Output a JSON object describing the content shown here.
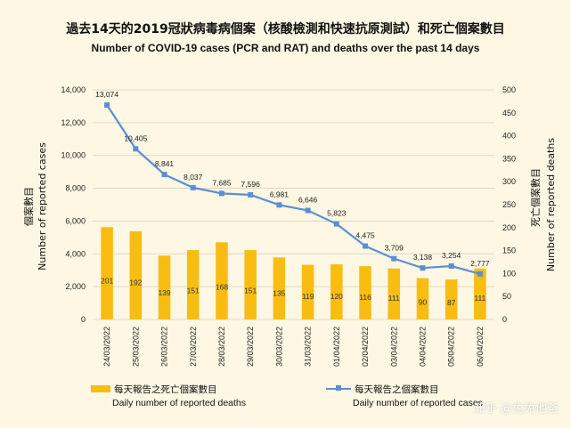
{
  "titles": {
    "zh": "過去14天的2019冠狀病毒病個案（核酸檢測和快速抗原測試）和死亡個案數目",
    "en": "Number of COVID-19 cases (PCR and RAT) and deaths over the past 14 days"
  },
  "axes": {
    "left_title_zh": "個案數目",
    "left_title_en": "Number of reported cases",
    "right_title_zh": "死亡個案數目",
    "right_title_en": "Number of reported deaths"
  },
  "legend": {
    "bar_zh": "每天報告之死亡個案數目",
    "bar_en": "Daily number of reported deaths",
    "line_zh": "每天報告之個案數目",
    "line_en": "Daily number of reported cases"
  },
  "watermark": "知乎 @免免他爸",
  "colors": {
    "bar": "#f8bd10",
    "line": "#5b8fd4",
    "background": "#fdf7e3"
  },
  "chart_data": {
    "type": "bar+line",
    "categories": [
      "24/03/2022",
      "25/03/2022",
      "26/03/2022",
      "27/03/2022",
      "28/03/2022",
      "29/03/2022",
      "30/03/2022",
      "31/03/2022",
      "01/04/2022",
      "02/04/2022",
      "03/04/2022",
      "04/04/2022",
      "05/04/2022",
      "06/04/2022"
    ],
    "series": [
      {
        "name": "Daily number of reported deaths",
        "type": "bar",
        "axis": "right",
        "values": [
          201,
          192,
          139,
          151,
          168,
          151,
          135,
          119,
          120,
          116,
          111,
          90,
          87,
          111
        ]
      },
      {
        "name": "Daily number of reported cases",
        "type": "line",
        "axis": "left",
        "values": [
          13074,
          10405,
          8841,
          8037,
          7685,
          7596,
          6981,
          6646,
          5823,
          4475,
          3709,
          3138,
          3254,
          2777
        ]
      }
    ],
    "left_ylim": [
      0,
      14000
    ],
    "left_ticks": [
      "0",
      "2,000",
      "4,000",
      "6,000",
      "8,000",
      "10,000",
      "12,000",
      "14,000"
    ],
    "right_ylim": [
      0,
      500
    ],
    "right_ticks": [
      "0",
      "50",
      "100",
      "150",
      "200",
      "250",
      "300",
      "350",
      "400",
      "450",
      "500"
    ],
    "line_labels": [
      "13,074",
      "10,405",
      "8,841",
      "8,037",
      "7,685",
      "7,596",
      "6,981",
      "6,646",
      "5,823",
      "4,475",
      "3,709",
      "3,138",
      "3,254",
      "2,777"
    ],
    "grid": true,
    "legend_position": "bottom"
  }
}
